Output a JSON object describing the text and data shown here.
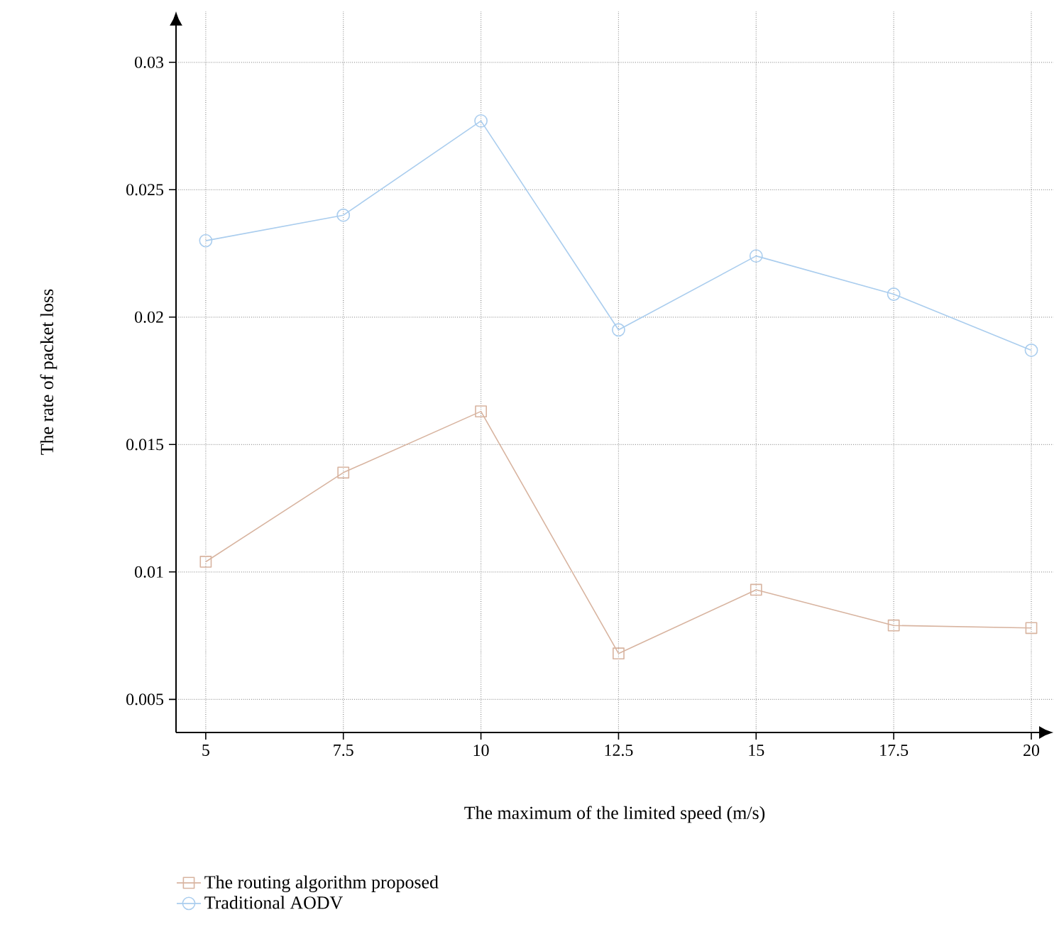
{
  "chart_data": {
    "type": "line",
    "xlabel": "The maximum of the limited speed (m/s)",
    "ylabel": "The rate of packet loss",
    "x": [
      5,
      7.5,
      10,
      12.5,
      15,
      17.5,
      20
    ],
    "series": [
      {
        "name": "The routing algorithm proposed",
        "color": "#d8b4a0",
        "marker": "square",
        "values": [
          0.0104,
          0.0139,
          0.0163,
          0.0068,
          0.0093,
          0.0079,
          0.0078
        ]
      },
      {
        "name": "Traditional AODV",
        "color": "#aacdee",
        "marker": "circle",
        "values": [
          0.023,
          0.024,
          0.0277,
          0.0195,
          0.0224,
          0.0209,
          0.0187
        ]
      }
    ],
    "xlim": [
      4.46,
      20.4
    ],
    "ylim": [
      0.0037,
      0.032
    ],
    "xticks": [
      5,
      7.5,
      10,
      12.5,
      15,
      17.5,
      20
    ],
    "yticks": [
      0.005,
      0.01,
      0.015,
      0.02,
      0.025,
      0.03
    ],
    "grid": true,
    "legend": "bottom left",
    "line_style": "solid"
  }
}
